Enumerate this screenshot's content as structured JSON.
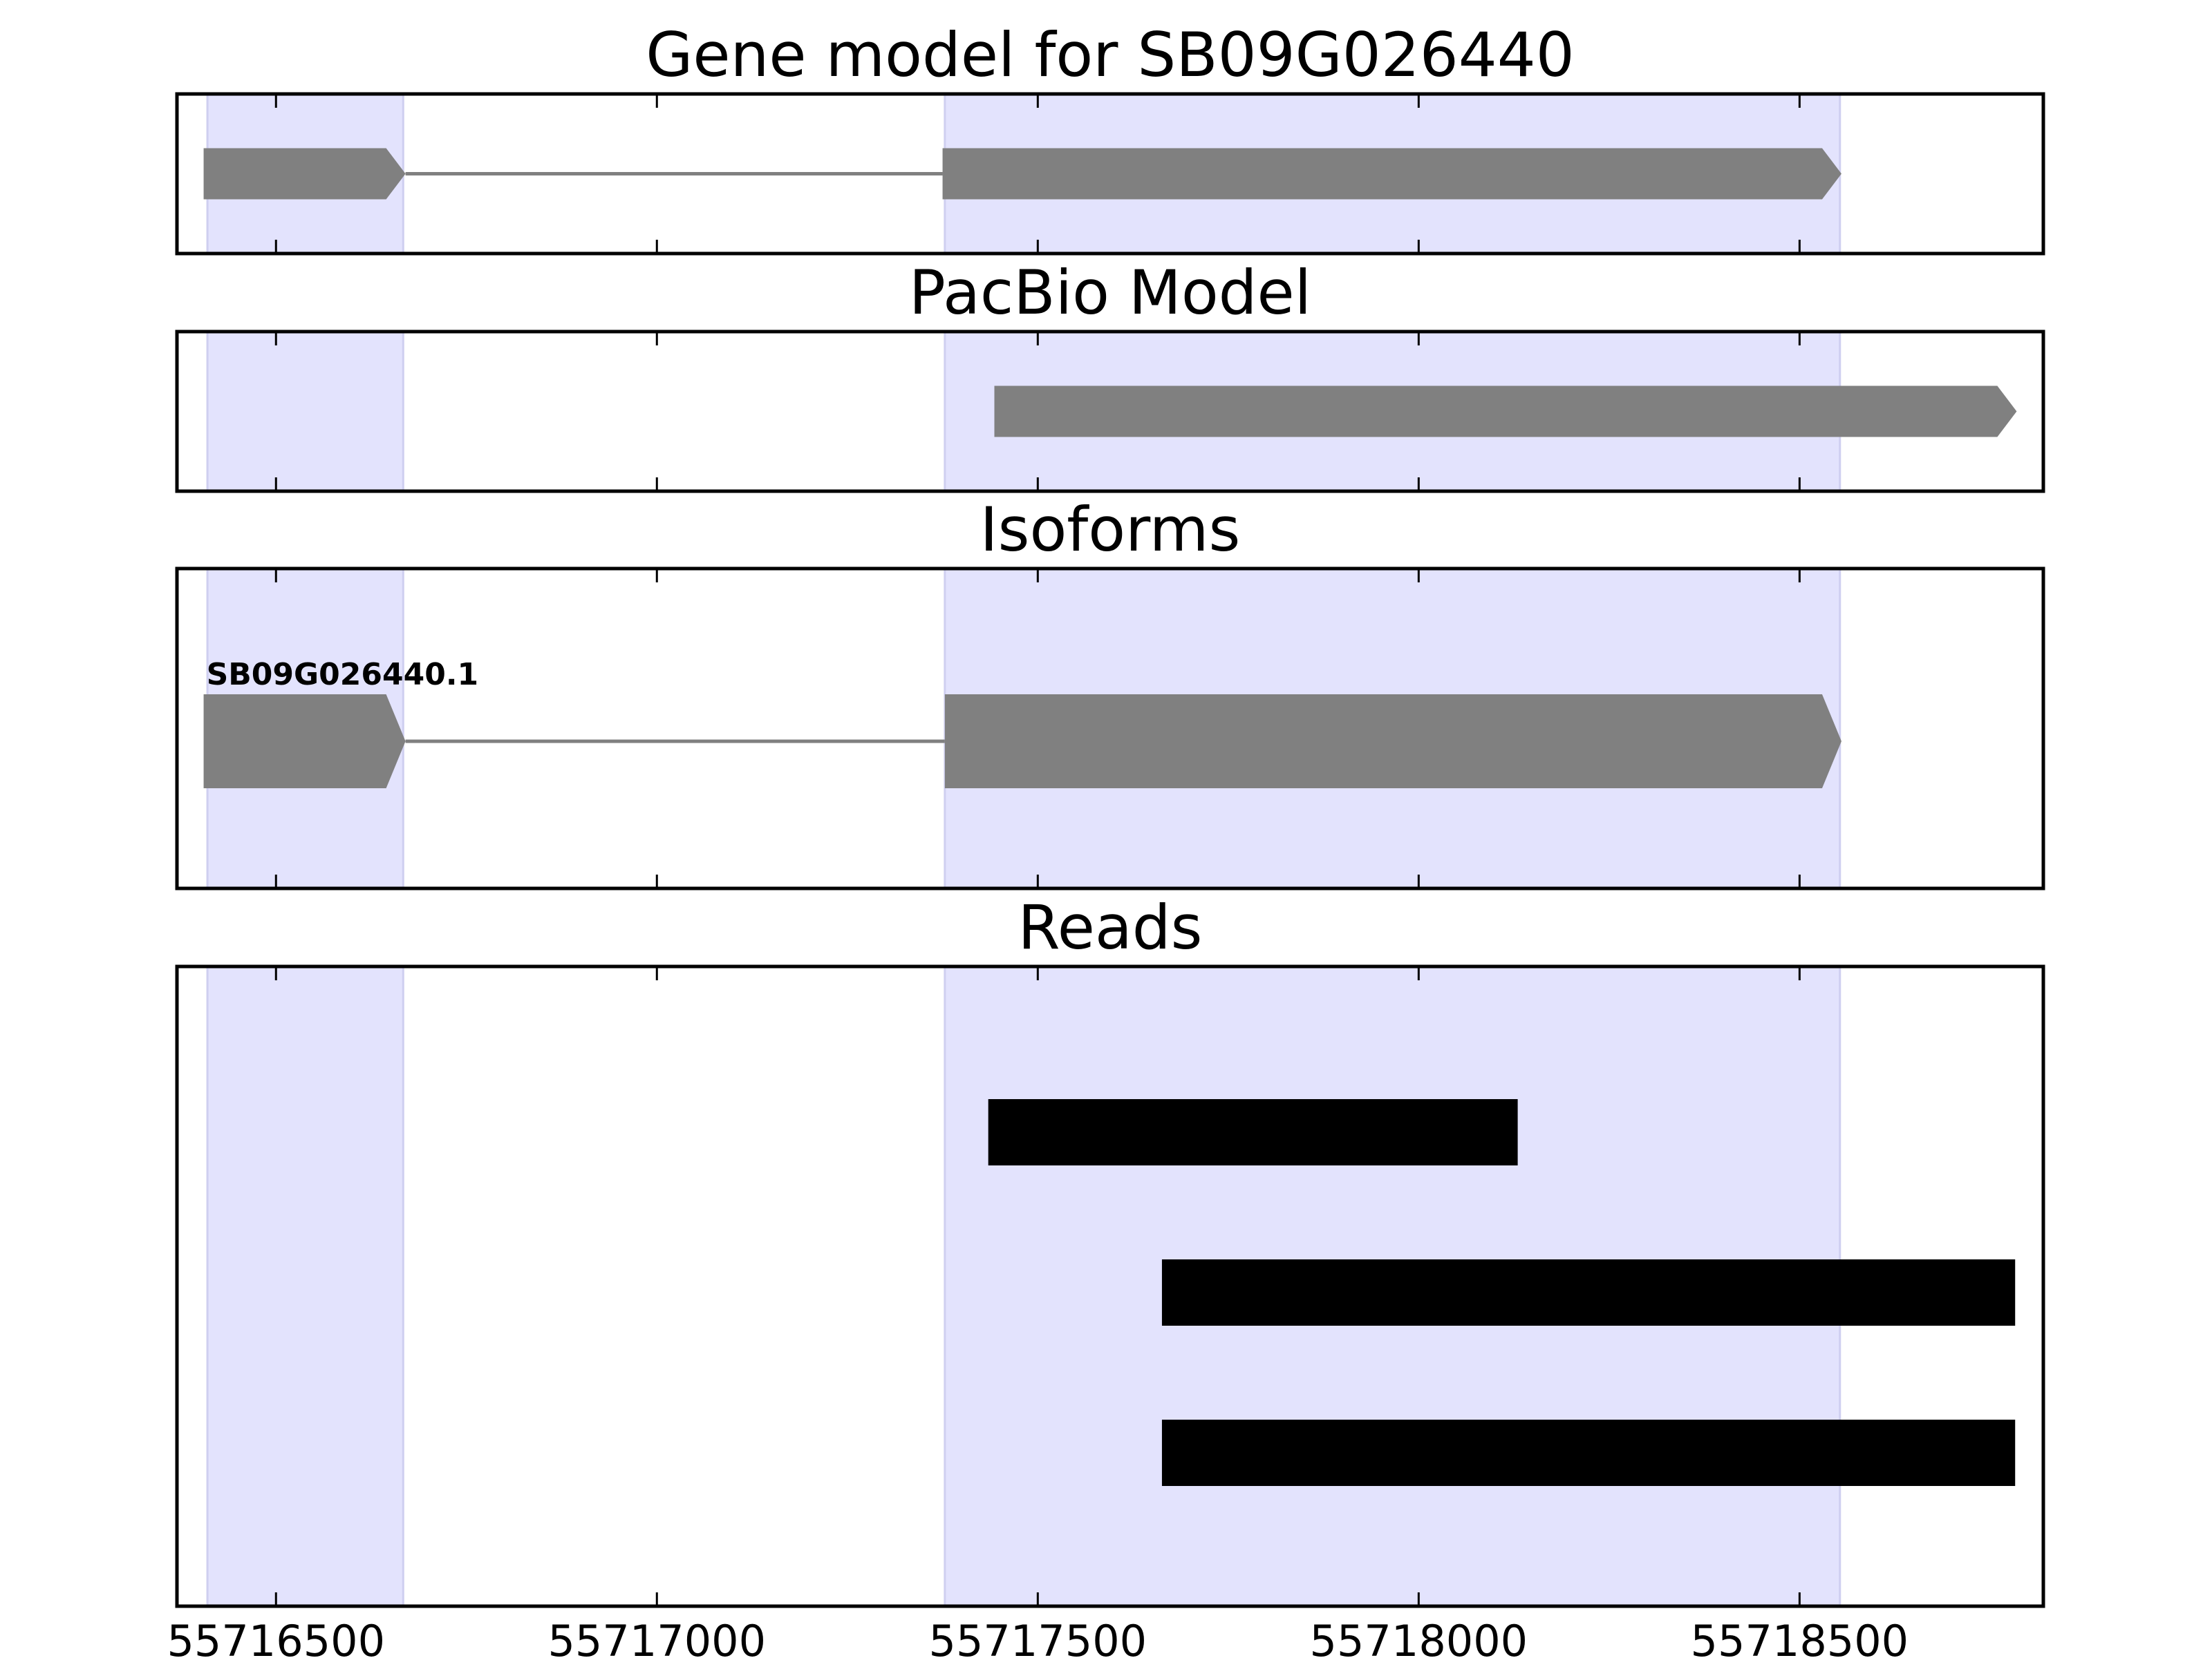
{
  "chart_data": {
    "type": "gene-track",
    "xlim": [
      55716370,
      55718820
    ],
    "xticks": [
      55716500,
      55717000,
      55717500,
      55718000,
      55718500
    ],
    "xtick_labels": [
      "55716500",
      "55717000",
      "55717500",
      "55718000",
      "55718500"
    ],
    "highlight_regions": [
      [
        55716410,
        55716667
      ],
      [
        55717378,
        55718553
      ]
    ],
    "colors": {
      "highlight": "#e3e3fd",
      "feature": "#808080",
      "intron": "#808080",
      "read": "#000000",
      "frame": "#000000"
    },
    "panels": [
      {
        "title": "Gene model for SB09G026440",
        "tracks": [
          {
            "label": "",
            "exons": [
              [
                55716405,
                55716670
              ],
              [
                55717375,
                55718555
              ]
            ],
            "strand": "+"
          }
        ]
      },
      {
        "title": "PacBio Model",
        "tracks": [
          {
            "label": "",
            "exons": [
              [
                55717443,
                55718785
              ]
            ],
            "strand": "+"
          }
        ]
      },
      {
        "title": "Isoforms",
        "tracks": [
          {
            "label": "SB09G026440.1",
            "exons": [
              [
                55716405,
                55716670
              ],
              [
                55717378,
                55718555
              ]
            ],
            "strand": "+"
          }
        ]
      },
      {
        "title": "Reads",
        "reads": [
          [
            55717435,
            55718130
          ],
          [
            55717663,
            55718783
          ],
          [
            55717663,
            55718783
          ]
        ]
      }
    ]
  }
}
